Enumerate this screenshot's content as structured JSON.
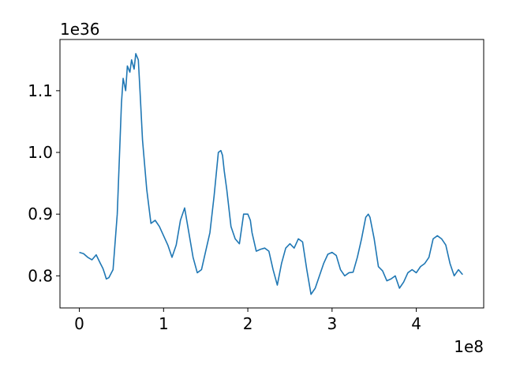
{
  "chart_data": {
    "type": "line",
    "title": "",
    "xlabel": "",
    "ylabel": "",
    "x_offset_text": "1e8",
    "y_offset_text": "1e36",
    "xlim": [
      -0.23,
      4.8
    ],
    "ylim": [
      0.748,
      1.183
    ],
    "x_ticks": [
      0,
      1,
      2,
      3,
      4
    ],
    "x_tick_labels": [
      "0",
      "1",
      "2",
      "3",
      "4"
    ],
    "y_ticks": [
      0.8,
      0.9,
      1.0,
      1.1
    ],
    "y_tick_labels": [
      "0.8",
      "0.9",
      "1.0",
      "1.1"
    ],
    "grid": false,
    "series": [
      {
        "color": "#1f77b4",
        "x": [
          0.0,
          0.05,
          0.1,
          0.15,
          0.2,
          0.25,
          0.28,
          0.3,
          0.32,
          0.35,
          0.4,
          0.45,
          0.5,
          0.52,
          0.55,
          0.57,
          0.6,
          0.62,
          0.65,
          0.67,
          0.7,
          0.72,
          0.75,
          0.8,
          0.85,
          0.9,
          0.95,
          1.0,
          1.05,
          1.1,
          1.15,
          1.2,
          1.25,
          1.3,
          1.35,
          1.4,
          1.45,
          1.5,
          1.55,
          1.6,
          1.65,
          1.68,
          1.7,
          1.72,
          1.75,
          1.8,
          1.85,
          1.9,
          1.95,
          2.0,
          2.03,
          2.05,
          2.1,
          2.15,
          2.2,
          2.25,
          2.3,
          2.35,
          2.4,
          2.45,
          2.5,
          2.55,
          2.6,
          2.65,
          2.7,
          2.75,
          2.8,
          2.85,
          2.9,
          2.95,
          3.0,
          3.05,
          3.1,
          3.15,
          3.2,
          3.25,
          3.3,
          3.35,
          3.4,
          3.43,
          3.45,
          3.5,
          3.55,
          3.6,
          3.65,
          3.7,
          3.75,
          3.8,
          3.85,
          3.9,
          3.95,
          4.0,
          4.05,
          4.1,
          4.15,
          4.2,
          4.25,
          4.3,
          4.35,
          4.4,
          4.45,
          4.5,
          4.55
        ],
        "y": [
          0.838,
          0.836,
          0.83,
          0.826,
          0.834,
          0.82,
          0.812,
          0.804,
          0.795,
          0.797,
          0.81,
          0.9,
          1.08,
          1.12,
          1.1,
          1.14,
          1.13,
          1.15,
          1.135,
          1.16,
          1.15,
          1.1,
          1.02,
          0.94,
          0.885,
          0.89,
          0.88,
          0.865,
          0.85,
          0.83,
          0.85,
          0.89,
          0.91,
          0.87,
          0.83,
          0.805,
          0.81,
          0.84,
          0.87,
          0.93,
          1.0,
          1.003,
          0.995,
          0.97,
          0.94,
          0.88,
          0.86,
          0.852,
          0.9,
          0.9,
          0.89,
          0.87,
          0.84,
          0.843,
          0.845,
          0.84,
          0.81,
          0.785,
          0.82,
          0.845,
          0.852,
          0.845,
          0.86,
          0.855,
          0.81,
          0.77,
          0.78,
          0.8,
          0.82,
          0.835,
          0.838,
          0.833,
          0.81,
          0.8,
          0.805,
          0.806,
          0.83,
          0.86,
          0.895,
          0.9,
          0.895,
          0.86,
          0.815,
          0.808,
          0.792,
          0.795,
          0.8,
          0.78,
          0.79,
          0.805,
          0.81,
          0.805,
          0.815,
          0.82,
          0.83,
          0.86,
          0.865,
          0.86,
          0.85,
          0.82,
          0.8,
          0.81,
          0.802
        ]
      }
    ]
  }
}
